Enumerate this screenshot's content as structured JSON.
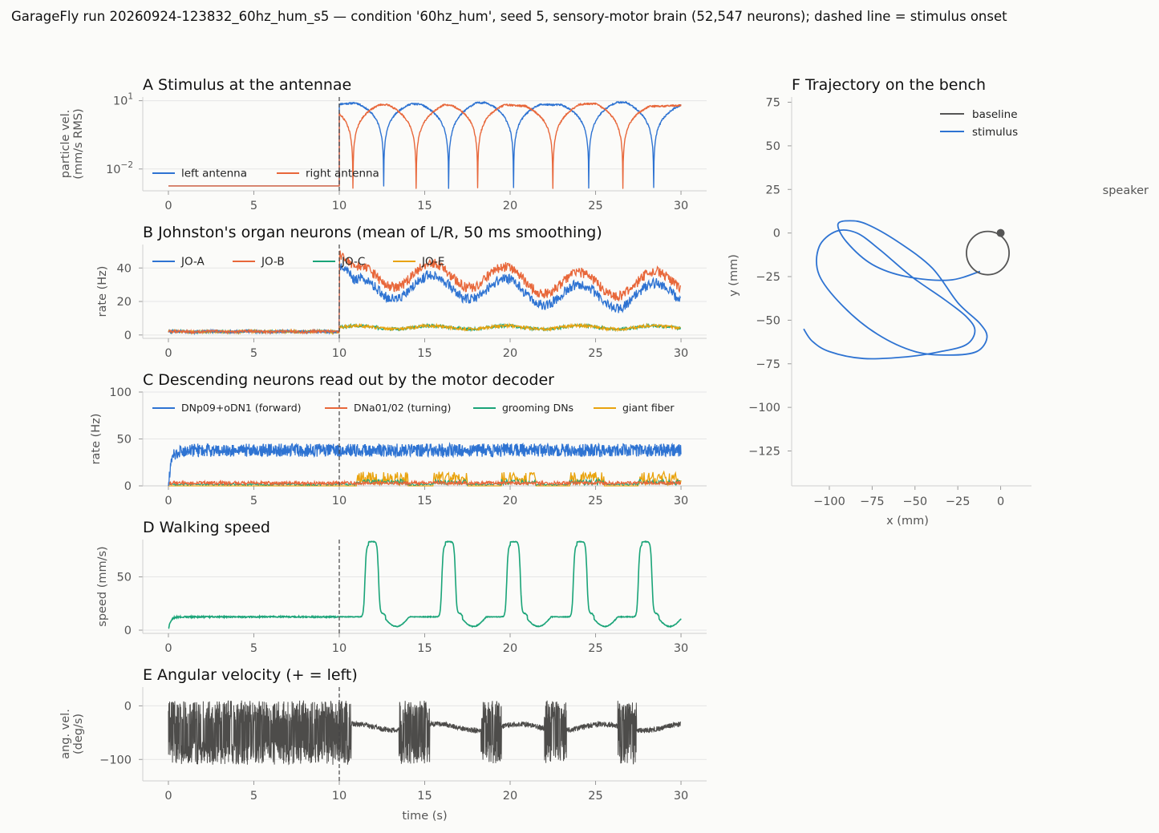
{
  "figure": {
    "suptitle": "GarageFly run 20260924-123832_60hz_hum_s5 — condition '60hz_hum', seed 5, sensory-motor brain (52,547 neurons); dashed line = stimulus onset"
  },
  "colors": {
    "blue": "#2e73d2",
    "orange": "#e8673a",
    "green": "#1aa478",
    "gold": "#e9a30e",
    "dark": "#4d4c4a",
    "baseline": "#555555"
  },
  "chart_data": [
    {
      "id": "A",
      "title": "A  Stimulus at the antennae",
      "type": "line",
      "ylabel": [
        "particle vel.",
        "(mm/s RMS)"
      ],
      "xlabel": "",
      "x_ticks": [
        "0",
        "5",
        "10",
        "15",
        "20",
        "25",
        "30"
      ],
      "xlim": [
        -1.5,
        31.5
      ],
      "yscale": "log",
      "y_ticks": [
        {
          "base": "10",
          "exp": "1",
          "value": 10
        },
        {
          "base": "10",
          "exp": "−2",
          "value": 0.01
        }
      ],
      "stimulus_onset": 10,
      "series": [
        {
          "name": "left antenna",
          "color": "#2e73d2",
          "baseline_value": 0.0018,
          "peak_value": 7.5,
          "dip_times": [
            12.6,
            16.4,
            20.2,
            24.6,
            28.4
          ]
        },
        {
          "name": "right antenna",
          "color": "#e8673a",
          "baseline_value": 0.0018,
          "peak_value": 6.5,
          "dip_times": [
            10.8,
            14.5,
            18.1,
            22.5,
            26.6
          ]
        }
      ]
    },
    {
      "id": "B",
      "title": "B  Johnston's organ neurons (mean of L/R, 50 ms smoothing)",
      "type": "line",
      "ylabel": [
        "rate (Hz)"
      ],
      "xlabel": "",
      "x_ticks": [
        "0",
        "5",
        "10",
        "15",
        "20",
        "25",
        "30"
      ],
      "xlim": [
        -1.5,
        31.5
      ],
      "ylim": [
        -2,
        54
      ],
      "y_ticks": [
        0,
        20,
        40
      ],
      "stimulus_onset": 10,
      "series": [
        {
          "name": "JO-A",
          "color": "#2e73d2",
          "baseline": 2,
          "stim_mean": 26,
          "peak": 42
        },
        {
          "name": "JO-B",
          "color": "#e8673a",
          "baseline": 2,
          "stim_mean": 33,
          "peak": 48
        },
        {
          "name": "JO-C",
          "color": "#1aa478",
          "baseline": 2,
          "stim_mean": 4.5,
          "peak": 7
        },
        {
          "name": "JO-E",
          "color": "#e9a30e",
          "baseline": 2,
          "stim_mean": 4.5,
          "peak": 7
        }
      ]
    },
    {
      "id": "C",
      "title": "C  Descending neurons read out by the motor decoder",
      "type": "line",
      "ylabel": [
        "rate (Hz)"
      ],
      "xlabel": "",
      "x_ticks": [
        "0",
        "5",
        "10",
        "15",
        "20",
        "25",
        "30"
      ],
      "xlim": [
        -1.5,
        31.5
      ],
      "ylim": [
        0,
        100
      ],
      "y_ticks": [
        0,
        50,
        100
      ],
      "stimulus_onset": 10,
      "series": [
        {
          "name": "DNp09+oDN1 (forward)",
          "color": "#2e73d2",
          "mean": 38
        },
        {
          "name": "DNa01/02 (turning)",
          "color": "#e8673a",
          "mean": 3
        },
        {
          "name": "grooming DNs",
          "color": "#1aa478",
          "mean": 1.5
        },
        {
          "name": "giant fiber",
          "color": "#e9a30e",
          "burst_windows": [
            [
              11,
              14
            ],
            [
              15.5,
              17.5
            ],
            [
              19.5,
              21.5
            ],
            [
              23.5,
              25.5
            ],
            [
              27.5,
              30
            ]
          ]
        }
      ]
    },
    {
      "id": "D",
      "title": "D  Walking speed",
      "type": "line",
      "ylabel": [
        "speed (mm/s)"
      ],
      "xlabel": "",
      "x_ticks": [
        "0",
        "5",
        "10",
        "15",
        "20",
        "25",
        "30"
      ],
      "xlim": [
        -1.5,
        31.5
      ],
      "ylim": [
        -3,
        85
      ],
      "y_ticks": [
        0,
        50
      ],
      "stimulus_onset": 10,
      "series": [
        {
          "name": "walking speed",
          "color": "#1aa478",
          "baseline": 12.5,
          "plateau": 80,
          "pulse_windows": [
            [
              11.5,
              12.3
            ],
            [
              16.0,
              16.8
            ],
            [
              19.8,
              20.6
            ],
            [
              23.7,
              24.5
            ],
            [
              27.5,
              28.3
            ]
          ]
        }
      ]
    },
    {
      "id": "E",
      "title": "E  Angular velocity (+ = left)",
      "type": "line",
      "ylabel": [
        "ang. vel.",
        "(deg/s)"
      ],
      "xlabel": "time (s)",
      "x_ticks": [
        "0",
        "5",
        "10",
        "15",
        "20",
        "25",
        "30"
      ],
      "xlim": [
        -1.5,
        31.5
      ],
      "ylim": [
        -140,
        35
      ],
      "y_ticks": [
        {
          "label": "0",
          "value": 0
        },
        {
          "label": "−100",
          "value": -100
        }
      ],
      "stimulus_onset": 10,
      "series": [
        {
          "name": "angular velocity",
          "color": "#4d4c4a",
          "quiet_level": -40,
          "oscillation_windows": [
            [
              0,
              10.7
            ],
            [
              13.5,
              15.3
            ],
            [
              18.3,
              19.5
            ],
            [
              22.0,
              23.3
            ],
            [
              26.3,
              27.4
            ]
          ]
        }
      ]
    },
    {
      "id": "F",
      "title": "F  Trajectory on the bench",
      "type": "line",
      "xlabel": "x (mm)",
      "ylabel": [
        "y (mm)"
      ],
      "xlim": [
        -122,
        18
      ],
      "ylim": [
        -145,
        78
      ],
      "x_ticks": [
        {
          "label": "−100",
          "value": -100
        },
        {
          "label": "−75",
          "value": -75
        },
        {
          "label": "−50",
          "value": -50
        },
        {
          "label": "−25",
          "value": -25
        },
        {
          "label": "0",
          "value": 0
        }
      ],
      "y_ticks": [
        {
          "label": "75",
          "value": 75
        },
        {
          "label": "50",
          "value": 50
        },
        {
          "label": "25",
          "value": 25
        },
        {
          "label": "0",
          "value": 0
        },
        {
          "label": "−25",
          "value": -25
        },
        {
          "label": "−50",
          "value": -50
        },
        {
          "label": "−75",
          "value": -75
        },
        {
          "label": "−100",
          "value": -100
        },
        {
          "label": "−125",
          "value": -125
        }
      ],
      "annotation": "speaker",
      "legend_position": "top-right",
      "series": [
        {
          "name": "baseline",
          "color": "#555555",
          "circle_center": [
            -7.5,
            -11.5
          ],
          "circle_radius": 11.5,
          "start": [
            0,
            0
          ]
        },
        {
          "name": "stimulus",
          "color": "#2e73d2",
          "points": [
            [
              -12,
              -22
            ],
            [
              -30,
              -27
            ],
            [
              -55,
              -25
            ],
            [
              -75,
              -18
            ],
            [
              -90,
              -5
            ],
            [
              -95,
              5
            ],
            [
              -88,
              7
            ],
            [
              -78,
              5
            ],
            [
              -60,
              -5
            ],
            [
              -40,
              -20
            ],
            [
              -25,
              -40
            ],
            [
              -12,
              -52
            ],
            [
              -8,
              -60
            ],
            [
              -14,
              -68
            ],
            [
              -30,
              -70
            ],
            [
              -50,
              -68
            ],
            [
              -72,
              -58
            ],
            [
              -92,
              -42
            ],
            [
              -106,
              -24
            ],
            [
              -106,
              -8
            ],
            [
              -96,
              1
            ],
            [
              -84,
              0
            ],
            [
              -70,
              -10
            ],
            [
              -52,
              -25
            ],
            [
              -33,
              -38
            ],
            [
              -20,
              -48
            ],
            [
              -15,
              -56
            ],
            [
              -20,
              -64
            ],
            [
              -35,
              -68
            ],
            [
              -55,
              -71
            ],
            [
              -80,
              -72
            ],
            [
              -100,
              -68
            ],
            [
              -110,
              -62
            ],
            [
              -115,
              -55
            ]
          ]
        }
      ]
    }
  ]
}
